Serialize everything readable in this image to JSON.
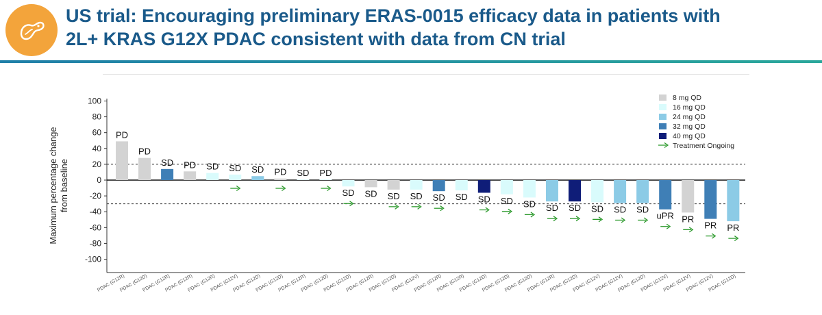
{
  "header": {
    "title_line1": "US trial: Encouraging preliminary ERAS-0015 efficacy data in patients with",
    "title_line2": "2L+ KRAS G12X PDAC consistent with data from CN trial",
    "icon": "pancreas-icon",
    "accent_color": "#f3a43b",
    "title_color": "#1a5a8a"
  },
  "chart_data": {
    "type": "bar",
    "ylabel": "Maximum percentage change from baseline",
    "ylabel_lines": [
      "Maximum percentage change",
      "from baseline"
    ],
    "ylim": [
      -110,
      105
    ],
    "yticks": [
      100,
      80,
      60,
      40,
      20,
      0,
      -20,
      -40,
      -60,
      -80,
      -100
    ],
    "reference_lines": [
      20,
      -30
    ],
    "legend": {
      "placement": "top-right",
      "entries": [
        {
          "name": "8 mg QD",
          "color": "#d3d3d3"
        },
        {
          "name": "16 mg QD",
          "color": "#d9fbfc"
        },
        {
          "name": "24 mg QD",
          "color": "#8ccbe6"
        },
        {
          "name": "32 mg QD",
          "color": "#3f7fb6"
        },
        {
          "name": "40 mg QD",
          "color": "#0f1d78"
        }
      ],
      "ongoing_label": "Treatment Ongoing",
      "ongoing_color": "#2d9a2d"
    },
    "categories": [
      "PDAC (G12R)",
      "PDAC (G12D)",
      "PDAC (G12R)",
      "PDAC (G12R)",
      "PDAC (G12R)",
      "PDAC (G12V)",
      "PDAC (G12D)",
      "PDAC (G12D)",
      "PDAC (G12R)",
      "PDAC (G12D)",
      "PDAC (G12D)",
      "PDAC (G12R)",
      "PDAC (G12D)",
      "PDAC (G12V)",
      "PDAC (G12R)",
      "PDAC (G12R)",
      "PDAC (G12D)",
      "PDAC (G12D)",
      "PDAC (G12D)",
      "PDAC (G12R)",
      "PDAC (G12D)",
      "PDAC (G12V)",
      "PDAC (G12V)",
      "PDAC (G12D)",
      "PDAC (G12V)",
      "PDAC (G12V)",
      "PDAC (G12V)",
      "PDAC (G12D)"
    ],
    "values": [
      49,
      28,
      14,
      11,
      9,
      7,
      5,
      2,
      1,
      1,
      -8,
      -9,
      -12,
      -12,
      -14,
      -13,
      -16,
      -18,
      -22,
      -27,
      -27,
      -28,
      -29,
      -29,
      -37,
      -41,
      -49,
      -52
    ],
    "dose": [
      "8 mg QD",
      "8 mg QD",
      "32 mg QD",
      "8 mg QD",
      "16 mg QD",
      "16 mg QD",
      "24 mg QD",
      "8 mg QD",
      "16 mg QD",
      "16 mg QD",
      "16 mg QD",
      "8 mg QD",
      "8 mg QD",
      "16 mg QD",
      "32 mg QD",
      "16 mg QD",
      "40 mg QD",
      "16 mg QD",
      "16 mg QD",
      "24 mg QD",
      "40 mg QD",
      "16 mg QD",
      "24 mg QD",
      "24 mg QD",
      "32 mg QD",
      "8 mg QD",
      "32 mg QD",
      "24 mg QD"
    ],
    "response": [
      "PD",
      "PD",
      "SD",
      "PD",
      "SD",
      "SD",
      "SD",
      "PD",
      "SD",
      "PD",
      "SD",
      "SD",
      "SD",
      "SD",
      "SD",
      "SD",
      "SD",
      "SD",
      "SD",
      "SD",
      "SD",
      "SD",
      "SD",
      "SD",
      "uPR",
      "PR",
      "PR",
      "PR"
    ],
    "ongoing": [
      false,
      false,
      false,
      false,
      false,
      true,
      false,
      true,
      false,
      true,
      true,
      false,
      true,
      true,
      true,
      false,
      true,
      true,
      true,
      true,
      true,
      true,
      true,
      true,
      true,
      true,
      true,
      true
    ]
  }
}
